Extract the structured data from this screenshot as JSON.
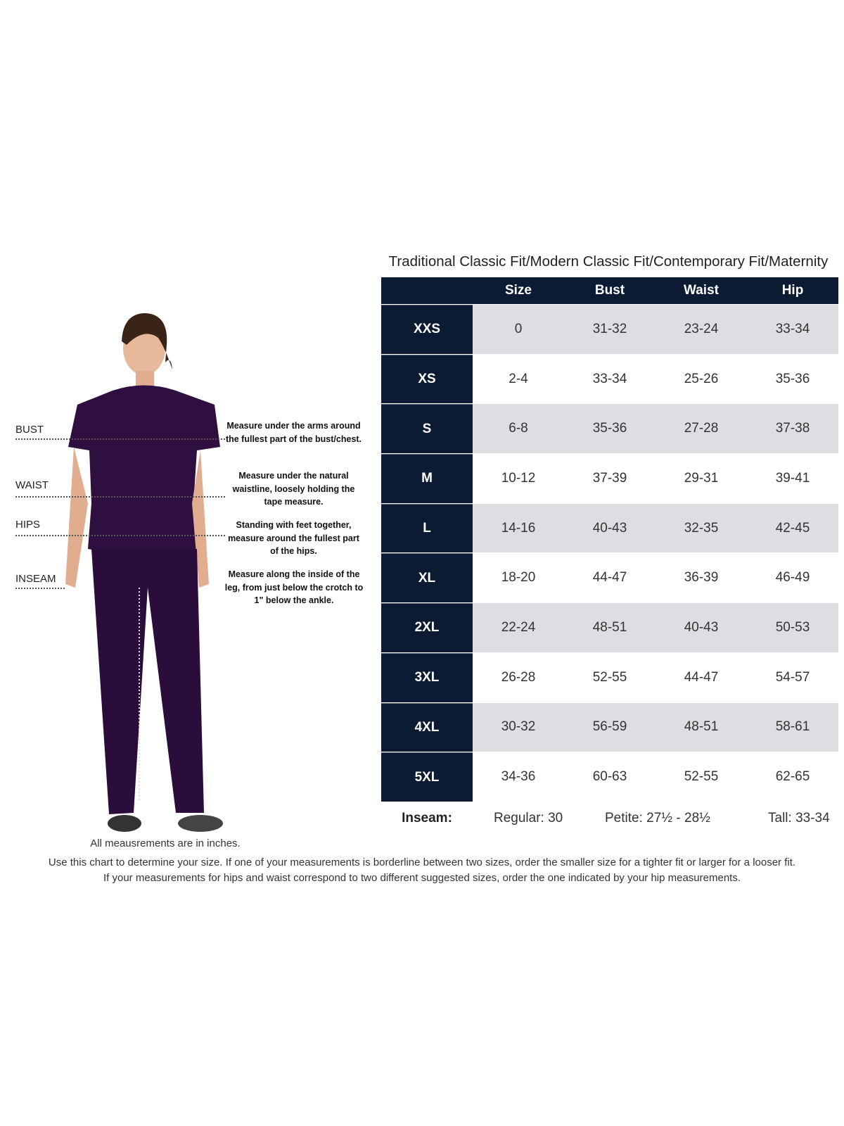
{
  "title": "Traditional Classic Fit/Modern Classic Fit/Contemporary Fit/Maternity",
  "table": {
    "headers": [
      "Size",
      "Bust",
      "Waist",
      "Hip"
    ],
    "rows": [
      {
        "size": "XXS",
        "num": "0",
        "bust": "31-32",
        "waist": "23-24",
        "hip": "33-34"
      },
      {
        "size": "XS",
        "num": "2-4",
        "bust": "33-34",
        "waist": "25-26",
        "hip": "35-36"
      },
      {
        "size": "S",
        "num": "6-8",
        "bust": "35-36",
        "waist": "27-28",
        "hip": "37-38"
      },
      {
        "size": "M",
        "num": "10-12",
        "bust": "37-39",
        "waist": "29-31",
        "hip": "39-41"
      },
      {
        "size": "L",
        "num": "14-16",
        "bust": "40-43",
        "waist": "32-35",
        "hip": "42-45"
      },
      {
        "size": "XL",
        "num": "18-20",
        "bust": "44-47",
        "waist": "36-39",
        "hip": "46-49"
      },
      {
        "size": "2XL",
        "num": "22-24",
        "bust": "48-51",
        "waist": "40-43",
        "hip": "50-53"
      },
      {
        "size": "3XL",
        "num": "26-28",
        "bust": "52-55",
        "waist": "44-47",
        "hip": "54-57"
      },
      {
        "size": "4XL",
        "num": "30-32",
        "bust": "56-59",
        "waist": "48-51",
        "hip": "58-61"
      },
      {
        "size": "5XL",
        "num": "34-36",
        "bust": "60-63",
        "waist": "52-55",
        "hip": "62-65"
      }
    ]
  },
  "inseam": {
    "label": "Inseam:",
    "regular": "Regular: 30",
    "petite": "Petite: 27½ - 28½",
    "tall": "Tall: 33-34"
  },
  "measurements": [
    {
      "label": "BUST",
      "desc": "Measure under the arms around the fullest part of the bust/chest."
    },
    {
      "label": "WAIST",
      "desc": "Measure under the natural waistline, loosely holding the tape measure."
    },
    {
      "label": "HIPS",
      "desc": "Standing with feet together, measure around the fullest part of the hips."
    },
    {
      "label": "INSEAM",
      "desc": "Measure along the inside of the leg, from just below the crotch to 1\" below the ankle."
    }
  ],
  "notes": {
    "units": "All meausrements are in inches.",
    "line1": "Use this chart to determine your size. If one of your measurements is borderline between two sizes, order the smaller size for a tighter fit or larger for a looser fit.",
    "line2": "If your measurements for hips and waist correspond to two different suggested sizes, order the one indicated by your hip measurements."
  },
  "colors": {
    "header": "#0c1a33",
    "alt_row": "#dcdee2",
    "garment": "#2e0f3f"
  }
}
